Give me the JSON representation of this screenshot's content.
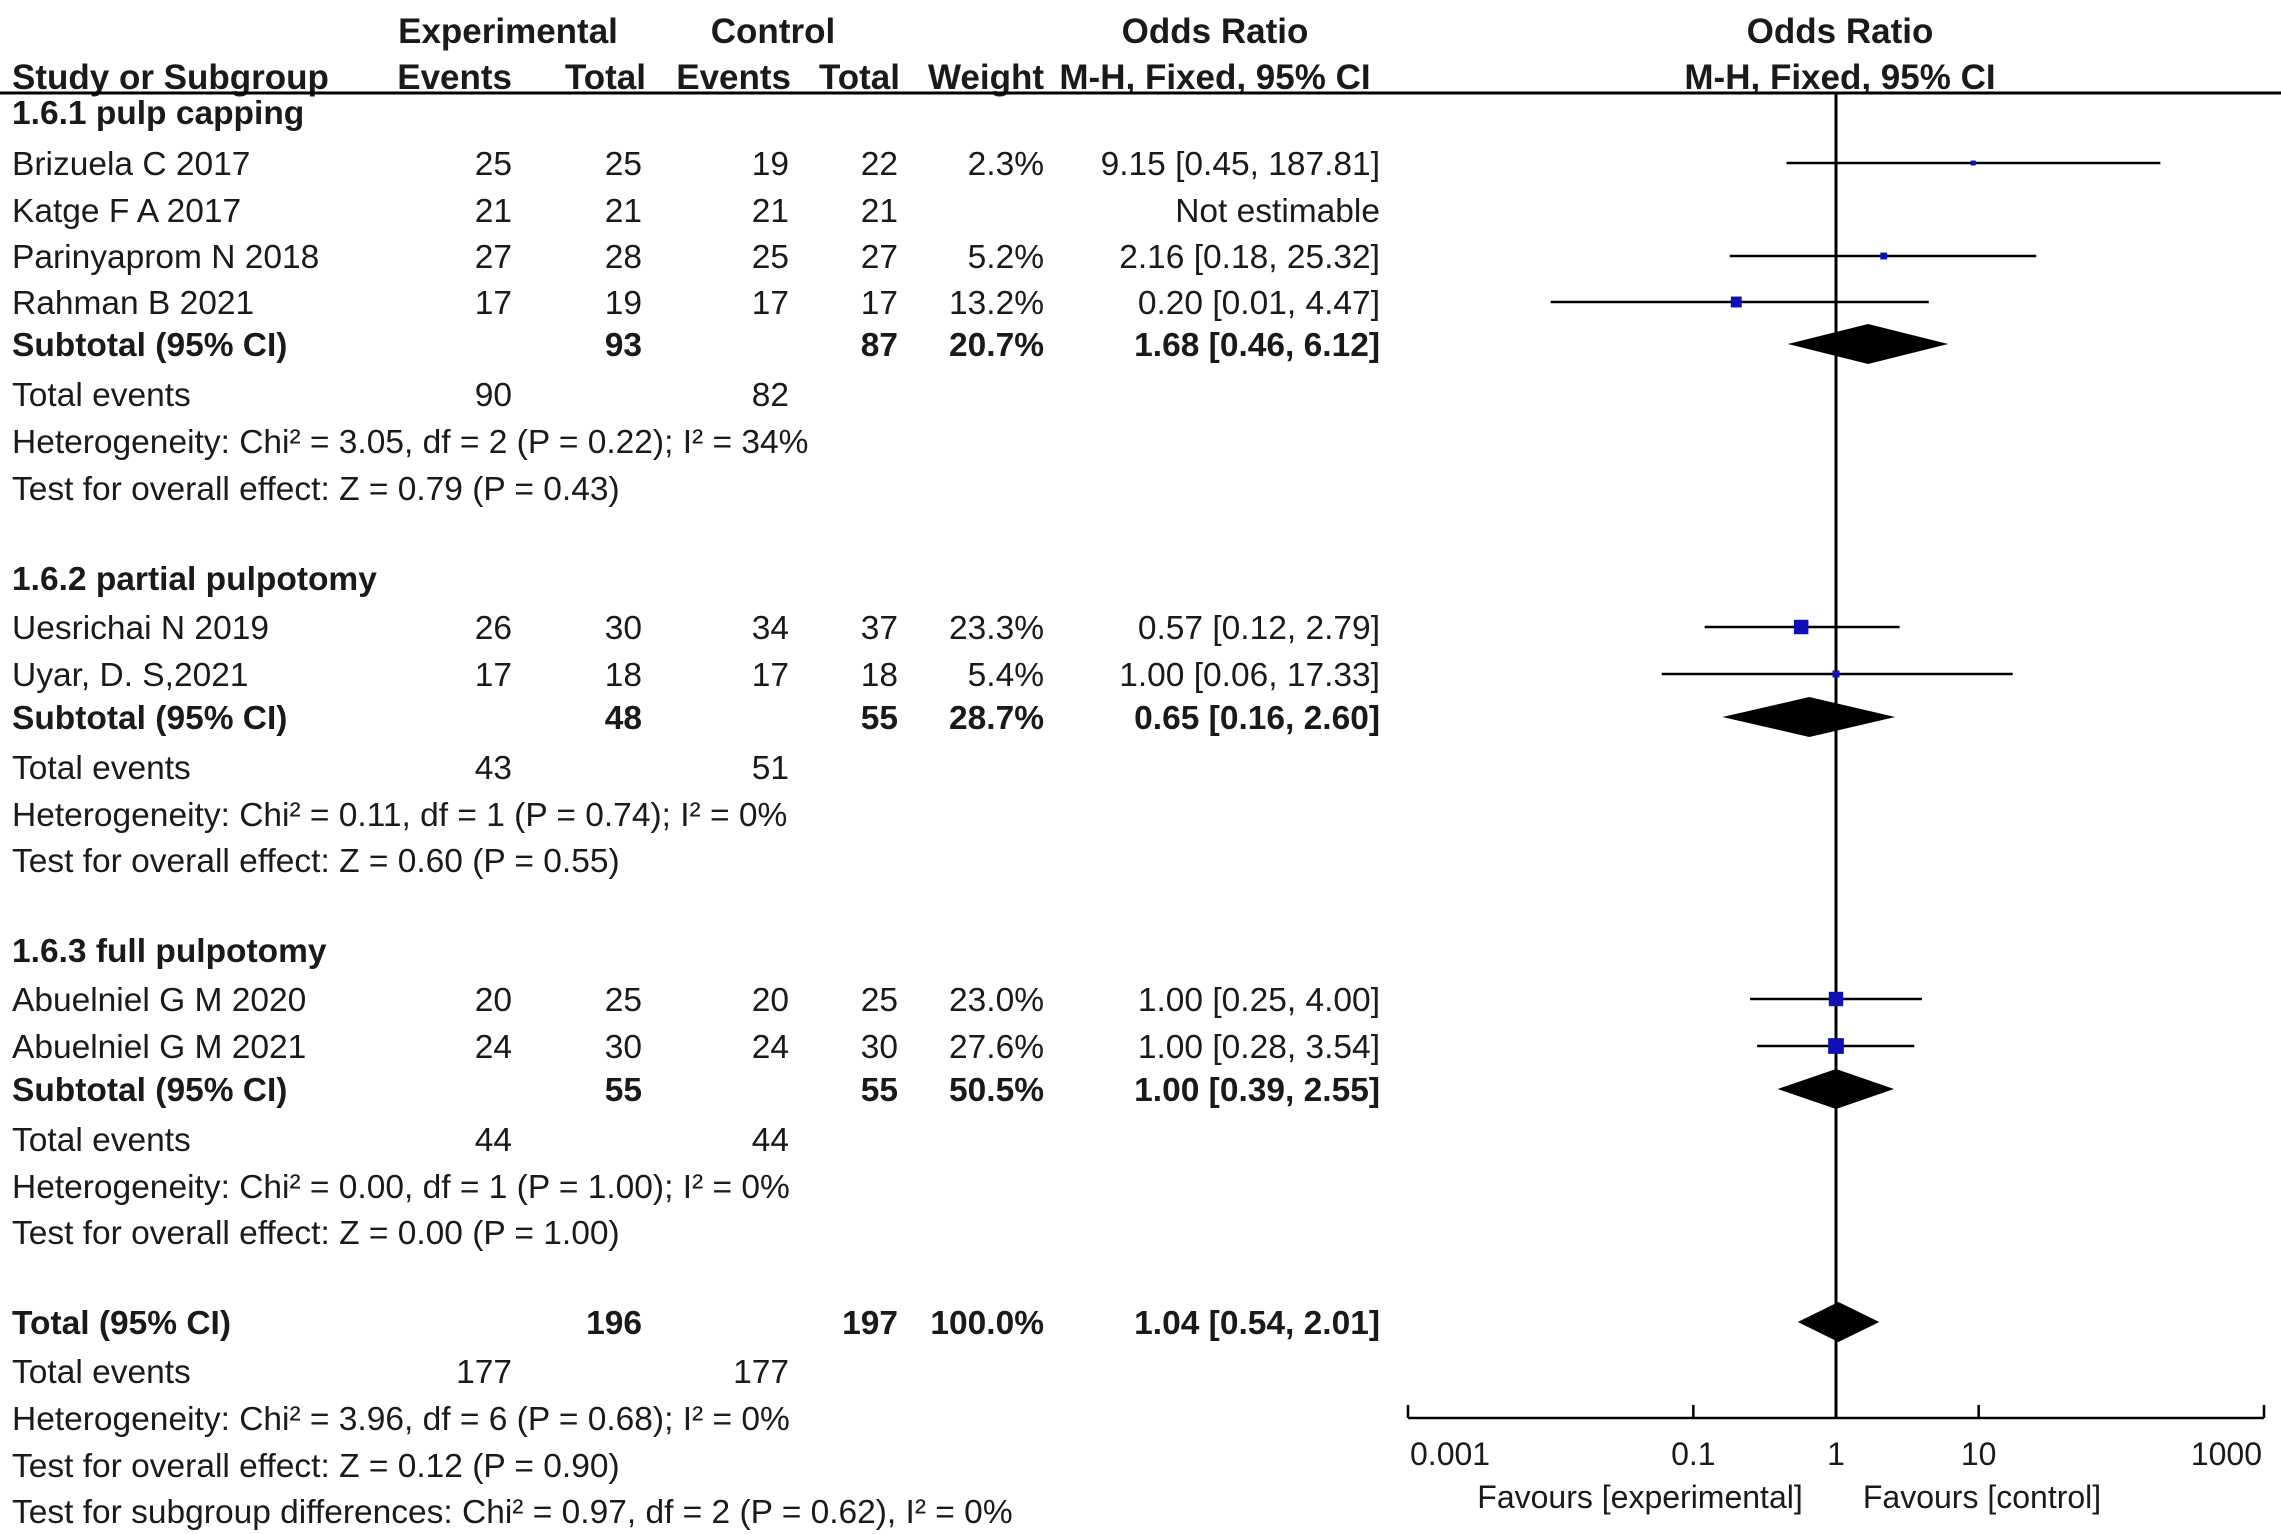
{
  "chart_data": {
    "type": "forest",
    "header": {
      "experimental": "Experimental",
      "control": "Control",
      "odds_ratio": "Odds Ratio",
      "study_or_subgroup": "Study or Subgroup",
      "events": "Events",
      "total": "Total",
      "weight": "Weight",
      "method": "M-H, Fixed, 95% CI"
    },
    "axis": {
      "scale": "log",
      "xlim": [
        0.001,
        1000
      ],
      "ticks": [
        "0.001",
        "0.1",
        "1",
        "10",
        "1000"
      ],
      "tick_values": [
        0.001,
        0.1,
        1,
        10,
        1000
      ],
      "left_label": "Favours [experimental]",
      "right_label": "Favours [control]"
    },
    "rows": [
      {
        "type": "group",
        "label": "1.6.1 pulp capping"
      },
      {
        "type": "study",
        "label": "Brizuela C 2017",
        "e_events": "25",
        "e_total": "25",
        "c_events": "19",
        "c_total": "22",
        "weight": "2.3%",
        "ci_text": "9.15 [0.45, 187.81]",
        "or": 9.15,
        "lo": 0.45,
        "hi": 187.81
      },
      {
        "type": "study",
        "label": "Katge F A  2017",
        "e_events": "21",
        "e_total": "21",
        "c_events": "21",
        "c_total": "21",
        "weight": "",
        "ci_text": "Not estimable"
      },
      {
        "type": "study",
        "label": "Parinyaprom N 2018",
        "e_events": "27",
        "e_total": "28",
        "c_events": "25",
        "c_total": "27",
        "weight": "5.2%",
        "ci_text": "2.16 [0.18, 25.32]",
        "or": 2.16,
        "lo": 0.18,
        "hi": 25.32
      },
      {
        "type": "study",
        "label": "Rahman B 2021",
        "e_events": "17",
        "e_total": "19",
        "c_events": "17",
        "c_total": "17",
        "weight": "13.2%",
        "ci_text": "0.20 [0.01, 4.47]",
        "or": 0.2,
        "lo": 0.01,
        "hi": 4.47
      },
      {
        "type": "subtotal",
        "label": "Subtotal (95% CI)",
        "e_total": "93",
        "c_total": "87",
        "weight": "20.7%",
        "ci_text": "1.68 [0.46, 6.12]",
        "or": 1.68,
        "lo": 0.46,
        "hi": 6.12
      },
      {
        "type": "events",
        "label": "Total events",
        "e_events": "90",
        "c_events": "82"
      },
      {
        "type": "text",
        "label": "Heterogeneity: Chi² = 3.05, df = 2 (P = 0.22); I² = 34%"
      },
      {
        "type": "text",
        "label": "Test for overall effect: Z = 0.79 (P = 0.43)"
      },
      {
        "type": "group",
        "label": "1.6.2 partial pulpotomy"
      },
      {
        "type": "study",
        "label": "Uesrichai N 2019",
        "e_events": "26",
        "e_total": "30",
        "c_events": "34",
        "c_total": "37",
        "weight": "23.3%",
        "ci_text": "0.57 [0.12, 2.79]",
        "or": 0.57,
        "lo": 0.12,
        "hi": 2.79
      },
      {
        "type": "study",
        "label": "Uyar, D. S,2021",
        "e_events": "17",
        "e_total": "18",
        "c_events": "17",
        "c_total": "18",
        "weight": "5.4%",
        "ci_text": "1.00 [0.06, 17.33]",
        "or": 1.0,
        "lo": 0.06,
        "hi": 17.33
      },
      {
        "type": "subtotal",
        "label": "Subtotal (95% CI)",
        "e_total": "48",
        "c_total": "55",
        "weight": "28.7%",
        "ci_text": "0.65 [0.16, 2.60]",
        "or": 0.65,
        "lo": 0.16,
        "hi": 2.6
      },
      {
        "type": "events",
        "label": "Total events",
        "e_events": "43",
        "c_events": "51"
      },
      {
        "type": "text",
        "label": "Heterogeneity: Chi² = 0.11, df = 1 (P = 0.74); I² = 0%"
      },
      {
        "type": "text",
        "label": "Test for overall effect: Z = 0.60 (P = 0.55)"
      },
      {
        "type": "group",
        "label": "1.6.3 full pulpotomy"
      },
      {
        "type": "study",
        "label": "Abuelniel  G  M 2020",
        "e_events": "20",
        "e_total": "25",
        "c_events": "20",
        "c_total": "25",
        "weight": "23.0%",
        "ci_text": "1.00 [0.25, 4.00]",
        "or": 1.0,
        "lo": 0.25,
        "hi": 4.0
      },
      {
        "type": "study",
        "label": "Abuelniel G M 2021",
        "e_events": "24",
        "e_total": "30",
        "c_events": "24",
        "c_total": "30",
        "weight": "27.6%",
        "ci_text": "1.00 [0.28, 3.54]",
        "or": 1.0,
        "lo": 0.28,
        "hi": 3.54
      },
      {
        "type": "subtotal",
        "label": "Subtotal (95% CI)",
        "e_total": "55",
        "c_total": "55",
        "weight": "50.5%",
        "ci_text": "1.00 [0.39, 2.55]",
        "or": 1.0,
        "lo": 0.39,
        "hi": 2.55
      },
      {
        "type": "events",
        "label": "Total events",
        "e_events": "44",
        "c_events": "44"
      },
      {
        "type": "text",
        "label": "Heterogeneity: Chi² = 0.00, df = 1 (P = 1.00); I² = 0%"
      },
      {
        "type": "text",
        "label": "Test for overall effect: Z = 0.00 (P = 1.00)"
      },
      {
        "type": "subtotal",
        "label": "Total (95% CI)",
        "e_total": "196",
        "c_total": "197",
        "weight": "100.0%",
        "ci_text": "1.04 [0.54, 2.01]",
        "or": 1.04,
        "lo": 0.54,
        "hi": 2.01
      },
      {
        "type": "events",
        "label": "Total events",
        "e_events": "177",
        "c_events": "177"
      },
      {
        "type": "text",
        "label": "Heterogeneity: Chi² = 3.96, df = 6 (P = 0.68); I² = 0%"
      },
      {
        "type": "text",
        "label": "Test for overall effect: Z = 0.12 (P = 0.90)"
      },
      {
        "type": "text",
        "label": "Test for subgroup differences: Chi² = 0.97, df = 2 (P = 0.62), I² = 0%"
      }
    ],
    "colors": {
      "study_marker": "#1010b8",
      "summary_diamond": "#000000",
      "line": "#000000"
    }
  }
}
